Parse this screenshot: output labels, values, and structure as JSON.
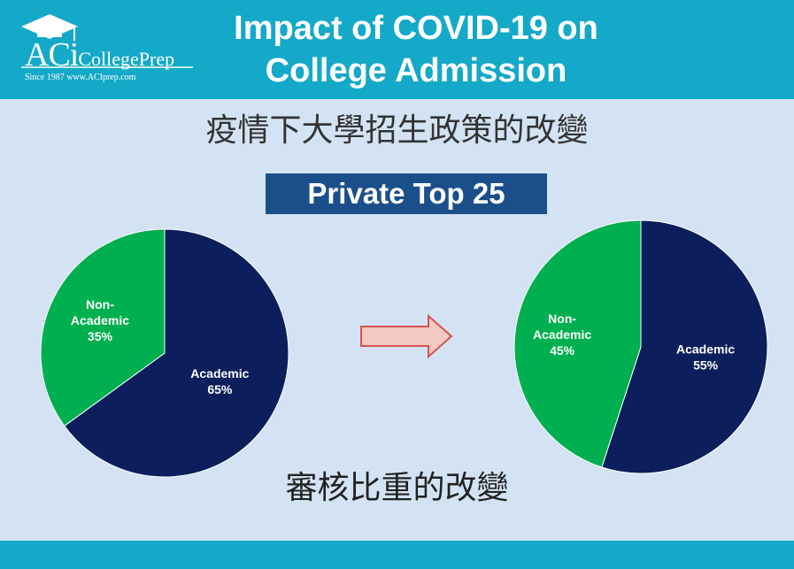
{
  "header": {
    "title_line1": "Impact of COVID-19 on",
    "title_line2": "College Admission",
    "logo_aci": "ACi",
    "logo_collegeprep": "CollegePrep",
    "logo_tagline": "Since 1987  www.ACIprep.com"
  },
  "subtitle": "疫情下大學招生政策的改變",
  "badge": "Private Top 25",
  "caption": "審核比重的改變",
  "colors": {
    "academic": "#0c1f5c",
    "non_academic": "#00b050",
    "arrow": "#d9534f",
    "header": "#14a9c8"
  },
  "chart_data": [
    {
      "type": "pie",
      "title": "",
      "categories": [
        "Academic",
        "Non-Academic"
      ],
      "values": [
        65,
        35
      ],
      "labels": [
        [
          "Academic",
          "65%"
        ],
        [
          "Non-",
          "Academic",
          "35%"
        ]
      ]
    },
    {
      "type": "pie",
      "title": "",
      "categories": [
        "Academic",
        "Non-Academic"
      ],
      "values": [
        55,
        45
      ],
      "labels": [
        [
          "Academic",
          "55%"
        ],
        [
          "Non-",
          "Academic",
          "45%"
        ]
      ]
    }
  ]
}
